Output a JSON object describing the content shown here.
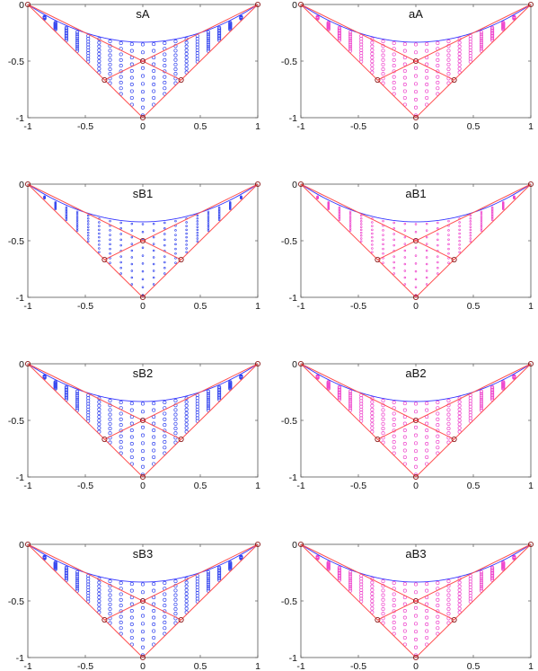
{
  "chart_data": [
    {
      "type": "scatter",
      "title": "sA",
      "xlim": [
        -1,
        1
      ],
      "ylim": [
        -1,
        0
      ],
      "xticks": [
        "-1",
        "-0.5",
        "0",
        "0.5",
        "1"
      ],
      "yticks": [
        "0",
        "-0.5",
        "-1"
      ],
      "marker_color": "#3344ee",
      "marker_size": "medium"
    },
    {
      "type": "scatter",
      "title": "aA",
      "xlim": [
        -1,
        1
      ],
      "ylim": [
        -1,
        0
      ],
      "xticks": [
        "-1",
        "-0.5",
        "0",
        "0.5",
        "1"
      ],
      "yticks": [
        "0",
        "-0.5",
        "-1"
      ],
      "marker_color": "#ee44cc",
      "marker_size": "medium"
    },
    {
      "type": "scatter",
      "title": "sB1",
      "xlim": [
        -1,
        1
      ],
      "ylim": [
        -1,
        0
      ],
      "xticks": [
        "-1",
        "-0.5",
        "0",
        "0.5",
        "1"
      ],
      "yticks": [
        "0",
        "-0.5",
        "-1"
      ],
      "marker_color": "#3344ee",
      "marker_size": "small"
    },
    {
      "type": "scatter",
      "title": "aB1",
      "xlim": [
        -1,
        1
      ],
      "ylim": [
        -1,
        0
      ],
      "xticks": [
        "-1",
        "-0.5",
        "0",
        "0.5",
        "1"
      ],
      "yticks": [
        "0",
        "-0.5",
        "-1"
      ],
      "marker_color": "#ee44cc",
      "marker_size": "small"
    },
    {
      "type": "scatter",
      "title": "sB2",
      "xlim": [
        -1,
        1
      ],
      "ylim": [
        -1,
        0
      ],
      "xticks": [
        "-1",
        "-0.5",
        "0",
        "0.5",
        "1"
      ],
      "yticks": [
        "0",
        "-0.5",
        "-1"
      ],
      "marker_color": "#3344ee",
      "marker_size": "medium"
    },
    {
      "type": "scatter",
      "title": "aB2",
      "xlim": [
        -1,
        1
      ],
      "ylim": [
        -1,
        0
      ],
      "xticks": [
        "-1",
        "-0.5",
        "0",
        "0.5",
        "1"
      ],
      "yticks": [
        "0",
        "-0.5",
        "-1"
      ],
      "marker_color": "#ee44cc",
      "marker_size": "medium"
    },
    {
      "type": "scatter",
      "title": "sB3",
      "xlim": [
        -1,
        1
      ],
      "ylim": [
        -1,
        0
      ],
      "xticks": [
        "-1",
        "-0.5",
        "0",
        "0.5",
        "1"
      ],
      "yticks": [
        "0",
        "-0.5",
        "-1"
      ],
      "marker_color": "#3344ee",
      "marker_size": "medium"
    },
    {
      "type": "scatter",
      "title": "aB3",
      "xlim": [
        -1,
        1
      ],
      "ylim": [
        -1,
        0
      ],
      "xticks": [
        "-1",
        "-0.5",
        "0",
        "0.5",
        "1"
      ],
      "yticks": [
        "0",
        "-0.5",
        "-1"
      ],
      "marker_color": "#ee44cc",
      "marker_size": "medium"
    }
  ],
  "shared": {
    "triangle_color": "#ff5050",
    "arc_color": "#3333ff",
    "vertices": [
      [
        -1,
        0
      ],
      [
        1,
        0
      ],
      [
        0,
        -1
      ]
    ],
    "edge_midpoints": [
      [
        -0.333,
        -0.667
      ],
      [
        0.333,
        -0.667
      ]
    ],
    "center": [
      0,
      -0.5
    ],
    "arc_bottom_y": -0.333
  }
}
